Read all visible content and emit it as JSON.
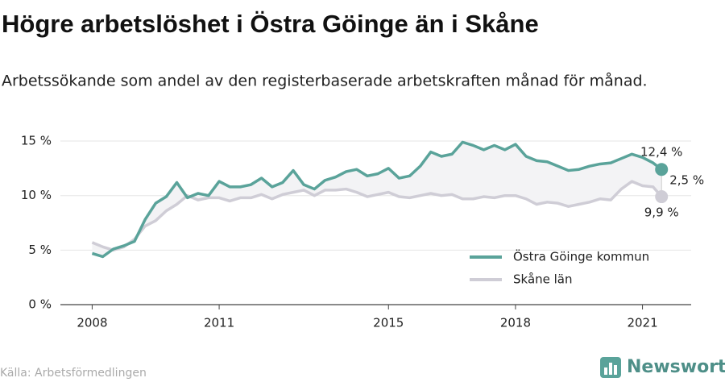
{
  "chart_data": {
    "type": "line",
    "title": "Högre arbetslöshet i Östra Göinge än i Skåne",
    "subtitle": "Arbetssökande som andel av den registerbaserade arbetskraften månad för månad.",
    "source": "Källa: Arbetsförmedlingen",
    "brand": "Newsworthy",
    "x": [
      2008,
      2008.25,
      2008.5,
      2008.75,
      2009,
      2009.25,
      2009.5,
      2009.75,
      2010,
      2010.25,
      2010.5,
      2010.75,
      2011,
      2011.25,
      2011.5,
      2011.75,
      2012,
      2012.25,
      2012.5,
      2012.75,
      2013,
      2013.25,
      2013.5,
      2013.75,
      2014,
      2014.25,
      2014.5,
      2014.75,
      2015,
      2015.25,
      2015.5,
      2015.75,
      2016,
      2016.25,
      2016.5,
      2016.75,
      2017,
      2017.25,
      2017.5,
      2017.75,
      2018,
      2018.25,
      2018.5,
      2018.75,
      2019,
      2019.25,
      2019.5,
      2019.75,
      2020,
      2020.25,
      2020.5,
      2020.75,
      2021,
      2021.25,
      2021.45
    ],
    "series": [
      {
        "name": "Östra Göinge kommun",
        "color": "#5aa39a",
        "end_label": "12,4 %",
        "values": [
          4.7,
          4.4,
          5.1,
          5.4,
          5.8,
          7.8,
          9.3,
          9.9,
          11.2,
          9.8,
          10.2,
          10.0,
          11.3,
          10.8,
          10.8,
          11.0,
          11.6,
          10.8,
          11.2,
          12.3,
          11.0,
          10.6,
          11.4,
          11.7,
          12.2,
          12.4,
          11.8,
          12.0,
          12.5,
          11.6,
          11.8,
          12.7,
          14.0,
          13.6,
          13.8,
          14.9,
          14.6,
          14.2,
          14.6,
          14.2,
          14.7,
          13.6,
          13.2,
          13.1,
          12.7,
          12.3,
          12.4,
          12.7,
          12.9,
          13.0,
          13.4,
          13.8,
          13.5,
          13.0,
          12.4
        ]
      },
      {
        "name": "Skåne län",
        "color": "#cfcdd6",
        "end_label": "9,9 %",
        "values": [
          5.7,
          5.3,
          5.0,
          5.3,
          6.0,
          7.2,
          7.7,
          8.6,
          9.2,
          10.0,
          9.6,
          9.8,
          9.8,
          9.5,
          9.8,
          9.8,
          10.1,
          9.7,
          10.1,
          10.3,
          10.5,
          10.0,
          10.5,
          10.5,
          10.6,
          10.3,
          9.9,
          10.1,
          10.3,
          9.9,
          9.8,
          10.0,
          10.2,
          10.0,
          10.1,
          9.7,
          9.7,
          9.9,
          9.8,
          10.0,
          10.0,
          9.7,
          9.2,
          9.4,
          9.3,
          9.0,
          9.2,
          9.4,
          9.7,
          9.6,
          10.6,
          11.3,
          10.9,
          10.8,
          9.9
        ]
      }
    ],
    "gap": {
      "value": 2.5,
      "label": "2,5 %"
    },
    "xlim": [
      2007.25,
      2022.15
    ],
    "xticks": [
      2008,
      2011,
      2015,
      2018,
      2021
    ],
    "ylim": [
      0,
      16
    ],
    "yticks": [
      {
        "value": 0,
        "label": "0 %"
      },
      {
        "value": 5,
        "label": "5 %"
      },
      {
        "value": 10,
        "label": "10 %"
      },
      {
        "value": 15,
        "label": "15 %"
      }
    ],
    "grid": true,
    "legend": "lower right"
  }
}
